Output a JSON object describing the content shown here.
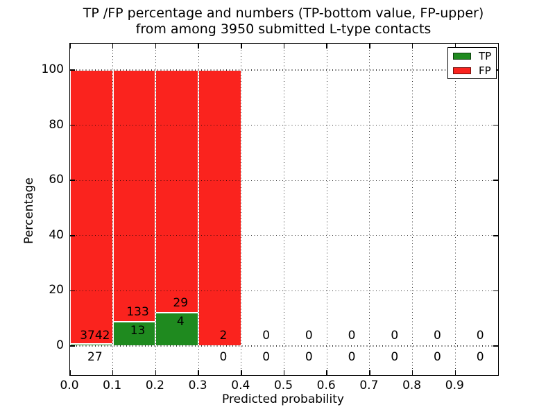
{
  "title": {
    "line1": "TP /FP percentage and numbers (TP-bottom value, FP-upper)",
    "line2": "from among 3950 submitted L-type contacts"
  },
  "chart_data": {
    "type": "bar",
    "stacked": true,
    "normalized": "each bin scaled to 100%",
    "title": "TP /FP percentage and numbers (TP-bottom value, FP-upper) from among 3950 submitted L-type contacts",
    "xlabel": "Predicted probability",
    "ylabel": "Percentage",
    "x_tick_labels": [
      "0.0",
      "0.1",
      "0.2",
      "0.3",
      "0.4",
      "0.5",
      "0.6",
      "0.7",
      "0.8",
      "0.9"
    ],
    "y_ticks": [
      0,
      20,
      40,
      60,
      80,
      100
    ],
    "xlim": [
      0.0,
      1.0
    ],
    "ylim": [
      -10.5,
      109.5
    ],
    "grid": "dotted both axes",
    "total_submitted": 3950,
    "legend": {
      "position": "upper right",
      "entries": [
        {
          "label": "TP",
          "color_key": "tp"
        },
        {
          "label": "FP",
          "color_key": "fp"
        }
      ]
    },
    "bins": [
      {
        "range": [
          0.0,
          0.1
        ],
        "tp": 27,
        "fp": 3742
      },
      {
        "range": [
          0.1,
          0.2
        ],
        "tp": 13,
        "fp": 133
      },
      {
        "range": [
          0.2,
          0.3
        ],
        "tp": 4,
        "fp": 29
      },
      {
        "range": [
          0.3,
          0.4
        ],
        "tp": 0,
        "fp": 2
      },
      {
        "range": [
          0.4,
          0.5
        ],
        "tp": 0,
        "fp": 0
      },
      {
        "range": [
          0.5,
          0.6
        ],
        "tp": 0,
        "fp": 0
      },
      {
        "range": [
          0.6,
          0.7
        ],
        "tp": 0,
        "fp": 0
      },
      {
        "range": [
          0.7,
          0.8
        ],
        "tp": 0,
        "fp": 0
      },
      {
        "range": [
          0.8,
          0.9
        ],
        "tp": 0,
        "fp": 0
      },
      {
        "range": [
          0.9,
          1.0
        ],
        "tp": 0,
        "fp": 0
      }
    ]
  },
  "colors": {
    "tp": "#1f8a1f",
    "fp": "#fa231e",
    "grid": "#000000",
    "background": "#ffffff",
    "text": "#000000"
  }
}
